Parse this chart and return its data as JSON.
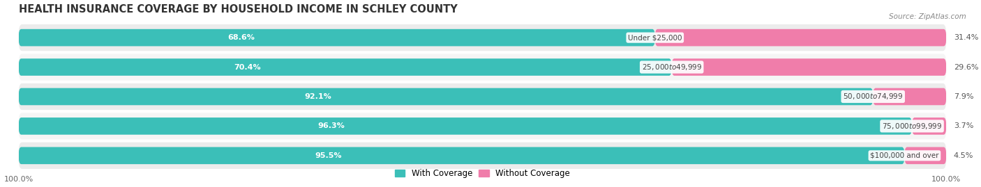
{
  "title": "HEALTH INSURANCE COVERAGE BY HOUSEHOLD INCOME IN SCHLEY COUNTY",
  "source": "Source: ZipAtlas.com",
  "categories": [
    "Under $25,000",
    "$25,000 to $49,999",
    "$50,000 to $74,999",
    "$75,000 to $99,999",
    "$100,000 and over"
  ],
  "with_coverage": [
    68.6,
    70.4,
    92.1,
    96.3,
    95.5
  ],
  "without_coverage": [
    31.4,
    29.6,
    7.9,
    3.7,
    4.5
  ],
  "coverage_color": "#3BBFB8",
  "no_coverage_color": "#F07DAA",
  "title_fontsize": 10.5,
  "label_fontsize": 8.0,
  "legend_fontsize": 8.5,
  "axis_label_fontsize": 8.0,
  "background_color": "#ffffff"
}
